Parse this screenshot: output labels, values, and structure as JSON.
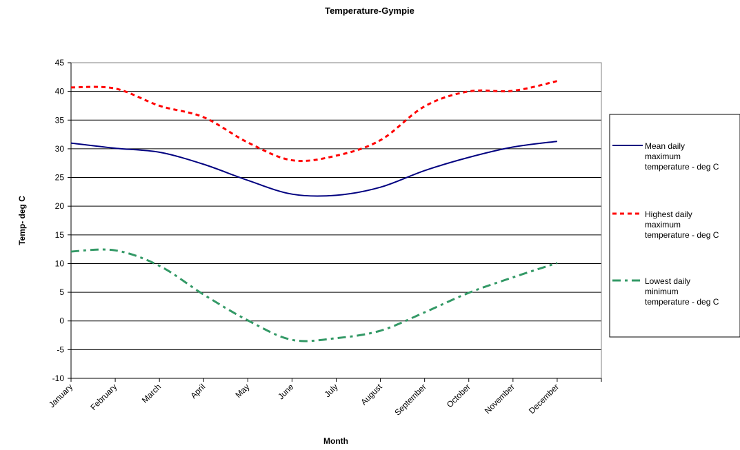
{
  "chart_data": {
    "type": "line",
    "title": "Temperature-Gympie",
    "xlabel": "Month",
    "ylabel": "Temp- deg C",
    "ylim": [
      -10,
      45
    ],
    "ytick_step": 5,
    "yticks": [
      "45",
      "40",
      "35",
      "30",
      "25",
      "20",
      "15",
      "10",
      "5",
      "0",
      "-5",
      "-10"
    ],
    "categories": [
      "January",
      "February",
      "March",
      "April",
      "May",
      "June",
      "July",
      "August",
      "September",
      "October",
      "November",
      "December"
    ],
    "grid": "horizontal",
    "legend_position": "right",
    "series": [
      {
        "name": "Mean daily maximum temperature - deg C",
        "legend_lines": [
          "Mean daily",
          "maximum",
          "temperature - deg C"
        ],
        "color": "#000080",
        "style": "solid",
        "values": [
          31.0,
          30.1,
          29.4,
          27.3,
          24.5,
          22.1,
          21.9,
          23.3,
          26.2,
          28.5,
          30.3,
          31.3
        ]
      },
      {
        "name": "Highest daily maximum temperature - deg C",
        "legend_lines": [
          "Highest daily",
          "maximum",
          "temperature - deg C"
        ],
        "color": "#ff0000",
        "style": "dotted",
        "values": [
          40.7,
          40.5,
          37.5,
          35.5,
          31.1,
          28.0,
          28.8,
          31.5,
          37.4,
          40.0,
          40.1,
          41.8
        ]
      },
      {
        "name": "Lowest daily minimum temperature - deg C",
        "legend_lines": [
          "Lowest daily",
          "minimum",
          "temperature - deg C"
        ],
        "color": "#339966",
        "style": "dashdot",
        "values": [
          12.1,
          12.3,
          9.6,
          4.6,
          0.1,
          -3.3,
          -3.0,
          -1.7,
          1.5,
          4.9,
          7.6,
          10.1
        ]
      }
    ]
  }
}
